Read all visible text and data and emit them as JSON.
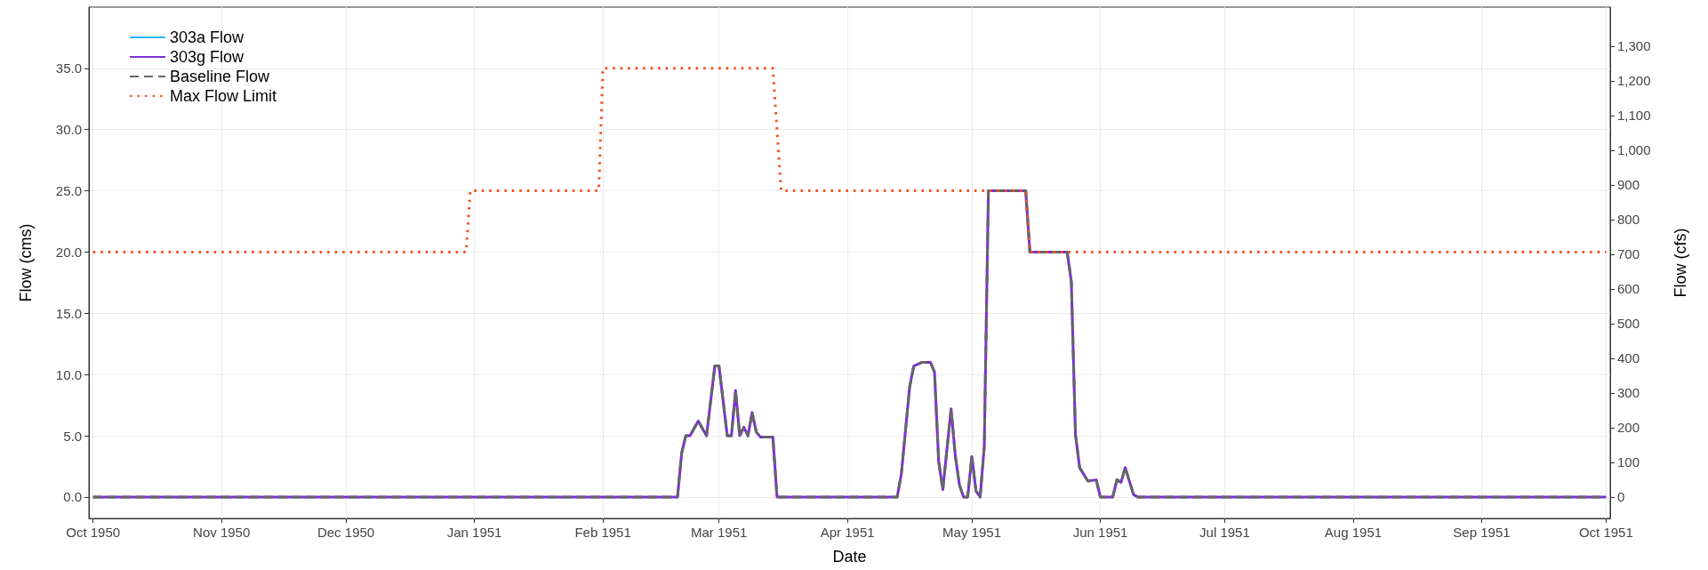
{
  "chart_data": {
    "type": "line",
    "xlabel": "Date",
    "ylabel": "Flow (cms)",
    "y2label": "Flow (cfs)",
    "xlim": [
      "1950-09-30",
      "1951-10-02"
    ],
    "xticks": [
      {
        "value": "1950-10-01",
        "label": "Oct 1950"
      },
      {
        "value": "1950-11-01",
        "label": "Nov 1950"
      },
      {
        "value": "1950-12-01",
        "label": "Dec 1950"
      },
      {
        "value": "1951-01-01",
        "label": "Jan 1951"
      },
      {
        "value": "1951-02-01",
        "label": "Feb 1951"
      },
      {
        "value": "1951-03-01",
        "label": "Mar 1951"
      },
      {
        "value": "1951-04-01",
        "label": "Apr 1951"
      },
      {
        "value": "1951-05-01",
        "label": "May 1951"
      },
      {
        "value": "1951-06-01",
        "label": "Jun 1951"
      },
      {
        "value": "1951-07-01",
        "label": "Jul 1951"
      },
      {
        "value": "1951-08-01",
        "label": "Aug 1951"
      },
      {
        "value": "1951-09-01",
        "label": "Sep 1951"
      },
      {
        "value": "1951-10-01",
        "label": "Oct 1951"
      }
    ],
    "ylim": [
      -1.75,
      40
    ],
    "yticks": [
      {
        "value": 0,
        "label": "0.0"
      },
      {
        "value": 5,
        "label": "5.0"
      },
      {
        "value": 10,
        "label": "10.0"
      },
      {
        "value": 15,
        "label": "15.0"
      },
      {
        "value": 20,
        "label": "20.0"
      },
      {
        "value": 25,
        "label": "25.0"
      },
      {
        "value": 30,
        "label": "30.0"
      },
      {
        "value": 35,
        "label": "35.0"
      }
    ],
    "y2lim": [
      -61.8,
      1412.6
    ],
    "y2ticks": [
      0,
      100,
      200,
      300,
      400,
      500,
      600,
      700,
      800,
      900,
      {
        "value": 1000,
        "label": "1,000"
      },
      {
        "value": 1100,
        "label": "1,100"
      },
      {
        "value": 1200,
        "label": "1,200"
      },
      {
        "value": 1300,
        "label": "1,300"
      }
    ],
    "grid": true,
    "legend": "top left",
    "marker": "none",
    "series": [
      {
        "name": "303a Flow",
        "color": "#29b6f6",
        "line_style": "solid"
      },
      {
        "name": "303g Flow",
        "color": "#7b2fd6",
        "line_style": "solid",
        "x": [
          "1950-10-01",
          "1951-02-19",
          "1951-02-20",
          "1951-02-21",
          "1951-02-22",
          "1951-02-24",
          "1951-02-26",
          "1951-02-28",
          "1951-03-01",
          "1951-03-03",
          "1951-03-04",
          "1951-03-05",
          "1951-03-06",
          "1951-03-07",
          "1951-03-08",
          "1951-03-09",
          "1951-03-10",
          "1951-03-11",
          "1951-03-14",
          "1951-03-15",
          "1951-04-13",
          "1951-04-14",
          "1951-04-16",
          "1951-04-17",
          "1951-04-19",
          "1951-04-21",
          "1951-04-22",
          "1951-04-23",
          "1951-04-24",
          "1951-04-26",
          "1951-04-27",
          "1951-04-28",
          "1951-04-29",
          "1951-04-30",
          "1951-05-01",
          "1951-05-02",
          "1951-05-03",
          "1951-05-04",
          "1951-05-05",
          "1951-05-14",
          "1951-05-15",
          "1951-05-24",
          "1951-05-25",
          "1951-05-26",
          "1951-05-27",
          "1951-05-29",
          "1951-05-31",
          "1951-06-01",
          "1951-06-04",
          "1951-06-05",
          "1951-06-06",
          "1951-06-07",
          "1951-06-09",
          "1951-06-10",
          "1951-10-01"
        ],
        "values": [
          0,
          0,
          3.6,
          5.0,
          5.0,
          6.2,
          5.0,
          10.7,
          10.7,
          5.0,
          5.0,
          8.7,
          5.0,
          5.7,
          5.0,
          6.9,
          5.3,
          4.9,
          4.9,
          0,
          0,
          1.9,
          9.0,
          10.7,
          11.0,
          11.0,
          10.2,
          2.9,
          0.6,
          7.2,
          3.4,
          1.0,
          0,
          0,
          3.3,
          0.5,
          0,
          4.1,
          25,
          25,
          20,
          20,
          17.6,
          5.1,
          2.4,
          1.3,
          1.4,
          0,
          0,
          1.4,
          1.2,
          2.4,
          0.2,
          0,
          0
        ]
      },
      {
        "name": "Baseline Flow",
        "color": "#666666",
        "line_style": "dashed",
        "x": [
          "1950-10-01",
          "1951-02-19",
          "1951-02-20",
          "1951-02-21",
          "1951-02-22",
          "1951-02-24",
          "1951-02-26",
          "1951-02-28",
          "1951-03-01",
          "1951-03-03",
          "1951-03-04",
          "1951-03-05",
          "1951-03-06",
          "1951-03-07",
          "1951-03-08",
          "1951-03-09",
          "1951-03-10",
          "1951-03-11",
          "1951-03-14",
          "1951-03-15",
          "1951-04-13",
          "1951-04-14",
          "1951-04-16",
          "1951-04-17",
          "1951-04-19",
          "1951-04-21",
          "1951-04-22",
          "1951-04-23",
          "1951-04-24",
          "1951-04-26",
          "1951-04-27",
          "1951-04-28",
          "1951-04-29",
          "1951-04-30",
          "1951-05-01",
          "1951-05-02",
          "1951-05-03",
          "1951-05-04",
          "1951-05-05",
          "1951-05-14",
          "1951-05-15",
          "1951-05-24",
          "1951-05-25",
          "1951-05-26",
          "1951-05-27",
          "1951-05-29",
          "1951-05-31",
          "1951-06-01",
          "1951-06-04",
          "1951-06-05",
          "1951-06-06",
          "1951-06-07",
          "1951-06-09",
          "1951-06-10",
          "1951-10-01"
        ],
        "values": [
          0,
          0,
          3.6,
          5.0,
          5.0,
          6.2,
          5.0,
          10.7,
          10.7,
          5.0,
          5.0,
          8.7,
          5.0,
          5.7,
          5.0,
          6.9,
          5.3,
          4.9,
          4.9,
          0,
          0,
          1.9,
          9.0,
          10.7,
          11.0,
          11.0,
          10.2,
          2.9,
          0.6,
          7.2,
          3.4,
          1.0,
          0,
          0,
          3.3,
          0.5,
          0,
          4.1,
          25,
          25,
          20,
          20,
          17.6,
          5.1,
          2.4,
          1.3,
          1.4,
          0,
          0,
          1.4,
          1.2,
          2.4,
          0.2,
          0,
          0
        ]
      },
      {
        "name": "Max Flow Limit",
        "color": "#f4511e",
        "line_style": "dotted",
        "x": [
          "1950-10-01",
          "1950-12-30",
          "1950-12-31",
          "1951-01-31",
          "1951-02-01",
          "1951-03-14",
          "1951-03-16",
          "1951-05-14",
          "1951-05-15",
          "1951-10-01"
        ],
        "values": [
          20,
          20,
          25,
          25,
          35,
          35,
          25,
          25,
          20,
          20
        ]
      }
    ]
  }
}
